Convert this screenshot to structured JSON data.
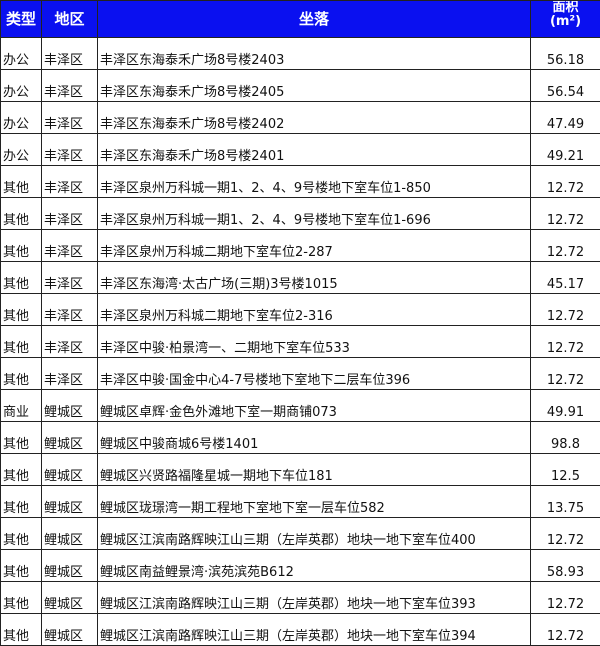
{
  "header": {
    "type": "类型",
    "district": "地区",
    "location": "坐落",
    "area_line1": "面积",
    "area_line2": "(m²)"
  },
  "rows": [
    {
      "type": "办公",
      "district": "丰泽区",
      "location": "丰泽区东海泰禾广场8号楼2403",
      "area": "56.18"
    },
    {
      "type": "办公",
      "district": "丰泽区",
      "location": "丰泽区东海泰禾广场8号楼2405",
      "area": "56.54"
    },
    {
      "type": "办公",
      "district": "丰泽区",
      "location": "丰泽区东海泰禾广场8号楼2402",
      "area": "47.49"
    },
    {
      "type": "办公",
      "district": "丰泽区",
      "location": "丰泽区东海泰禾广场8号楼2401",
      "area": "49.21"
    },
    {
      "type": "其他",
      "district": "丰泽区",
      "location": "丰泽区泉州万科城一期1、2、4、9号楼地下室车位1-850",
      "area": "12.72"
    },
    {
      "type": "其他",
      "district": "丰泽区",
      "location": "丰泽区泉州万科城一期1、2、4、9号楼地下室车位1-696",
      "area": "12.72"
    },
    {
      "type": "其他",
      "district": "丰泽区",
      "location": "丰泽区泉州万科城二期地下室车位2-287",
      "area": "12.72"
    },
    {
      "type": "其他",
      "district": "丰泽区",
      "location": "丰泽区东海湾·太古广场(三期)3号楼1015",
      "area": "45.17"
    },
    {
      "type": "其他",
      "district": "丰泽区",
      "location": "丰泽区泉州万科城二期地下室车位2-316",
      "area": "12.72"
    },
    {
      "type": "其他",
      "district": "丰泽区",
      "location": "丰泽区中骏·柏景湾一、二期地下室车位533",
      "area": "12.72"
    },
    {
      "type": "其他",
      "district": "丰泽区",
      "location": "丰泽区中骏·国金中心4-7号楼地下室地下二层车位396",
      "area": "12.72"
    },
    {
      "type": "商业",
      "district": "鲤城区",
      "location": "鲤城区卓辉·金色外滩地下室一期商铺073",
      "area": "49.91"
    },
    {
      "type": "其他",
      "district": "鲤城区",
      "location": "鲤城区中骏商城6号楼1401",
      "area": "98.8"
    },
    {
      "type": "其他",
      "district": "鲤城区",
      "location": "鲤城区兴贤路福隆星城一期地下车位181",
      "area": "12.5"
    },
    {
      "type": "其他",
      "district": "鲤城区",
      "location": "鲤城区珑璟湾一期工程地下室地下室一层车位582",
      "area": "13.75"
    },
    {
      "type": "其他",
      "district": "鲤城区",
      "location": "鲤城区江滨南路辉映江山三期（左岸英郡）地块一地下室车位400",
      "area": "12.72"
    },
    {
      "type": "其他",
      "district": "鲤城区",
      "location": "鲤城区南益鲤景湾·滨苑滨苑B612",
      "area": "58.93"
    },
    {
      "type": "其他",
      "district": "鲤城区",
      "location": "鲤城区江滨南路辉映江山三期（左岸英郡）地块一地下室车位393",
      "area": "12.72"
    },
    {
      "type": "其他",
      "district": "鲤城区",
      "location": "鲤城区江滨南路辉映江山三期（左岸英郡）地块一地下室车位394",
      "area": "12.72"
    }
  ],
  "colors": {
    "header_bg": "#0a10f0",
    "header_text": "#ffffff"
  }
}
